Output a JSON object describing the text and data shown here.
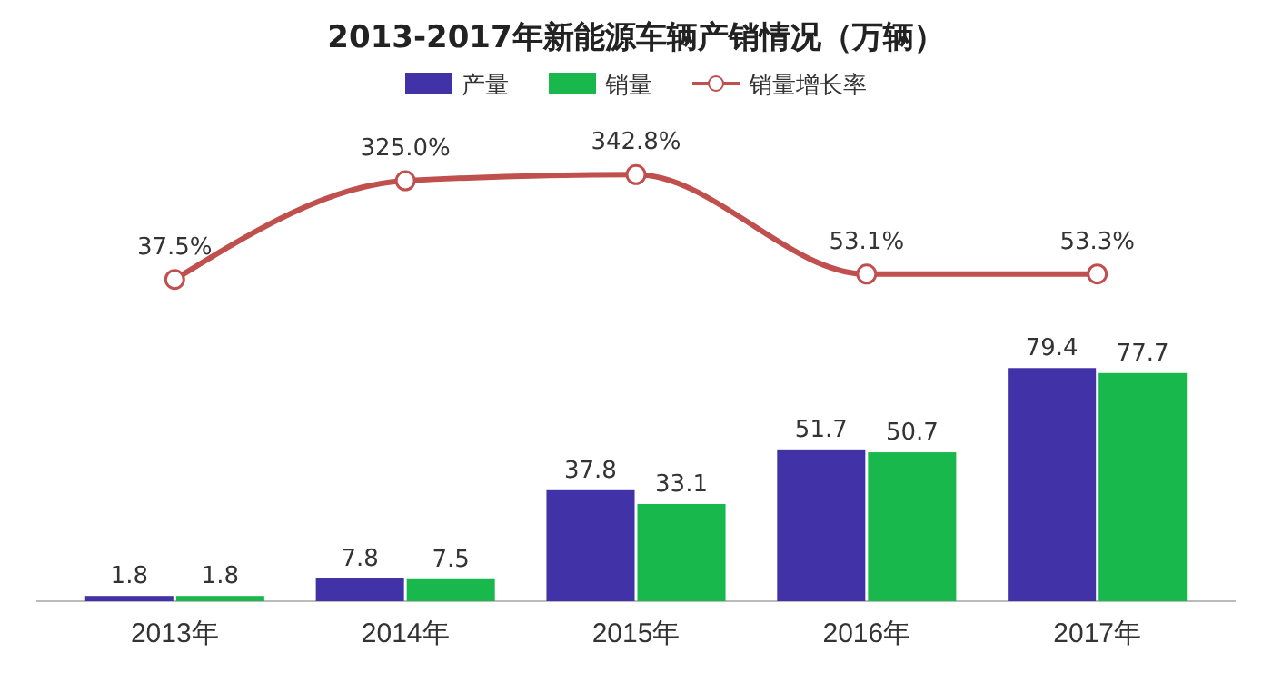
{
  "chart_data": {
    "type": "bar",
    "title": "2013-2017年新能源车辆产销情况（万辆）",
    "categories": [
      "2013年",
      "2014年",
      "2015年",
      "2016年",
      "2017年"
    ],
    "series": [
      {
        "name": "产量",
        "color": "#4232a8",
        "values": [
          1.8,
          7.8,
          37.8,
          51.7,
          79.4
        ],
        "value_labels": [
          "1.8",
          "7.8",
          "37.8",
          "51.7",
          "79.4"
        ]
      },
      {
        "name": "销量",
        "color": "#19b84c",
        "values": [
          1.8,
          7.5,
          33.1,
          50.7,
          77.7
        ],
        "value_labels": [
          "1.8",
          "7.5",
          "33.1",
          "50.7",
          "77.7"
        ]
      },
      {
        "name": "销量增长率",
        "color": "#c0504d",
        "type": "line",
        "axis": "y2",
        "marker": "circle",
        "values": [
          37.5,
          325.0,
          342.8,
          53.1,
          53.3
        ],
        "value_labels": [
          "37.5%",
          "325.0%",
          "342.8%",
          "53.1%",
          "53.3%"
        ]
      }
    ],
    "ylim": [
      0,
      180
    ],
    "y2lim": [
      -900,
      640
    ],
    "legend": "top",
    "tick_labels": "x"
  }
}
